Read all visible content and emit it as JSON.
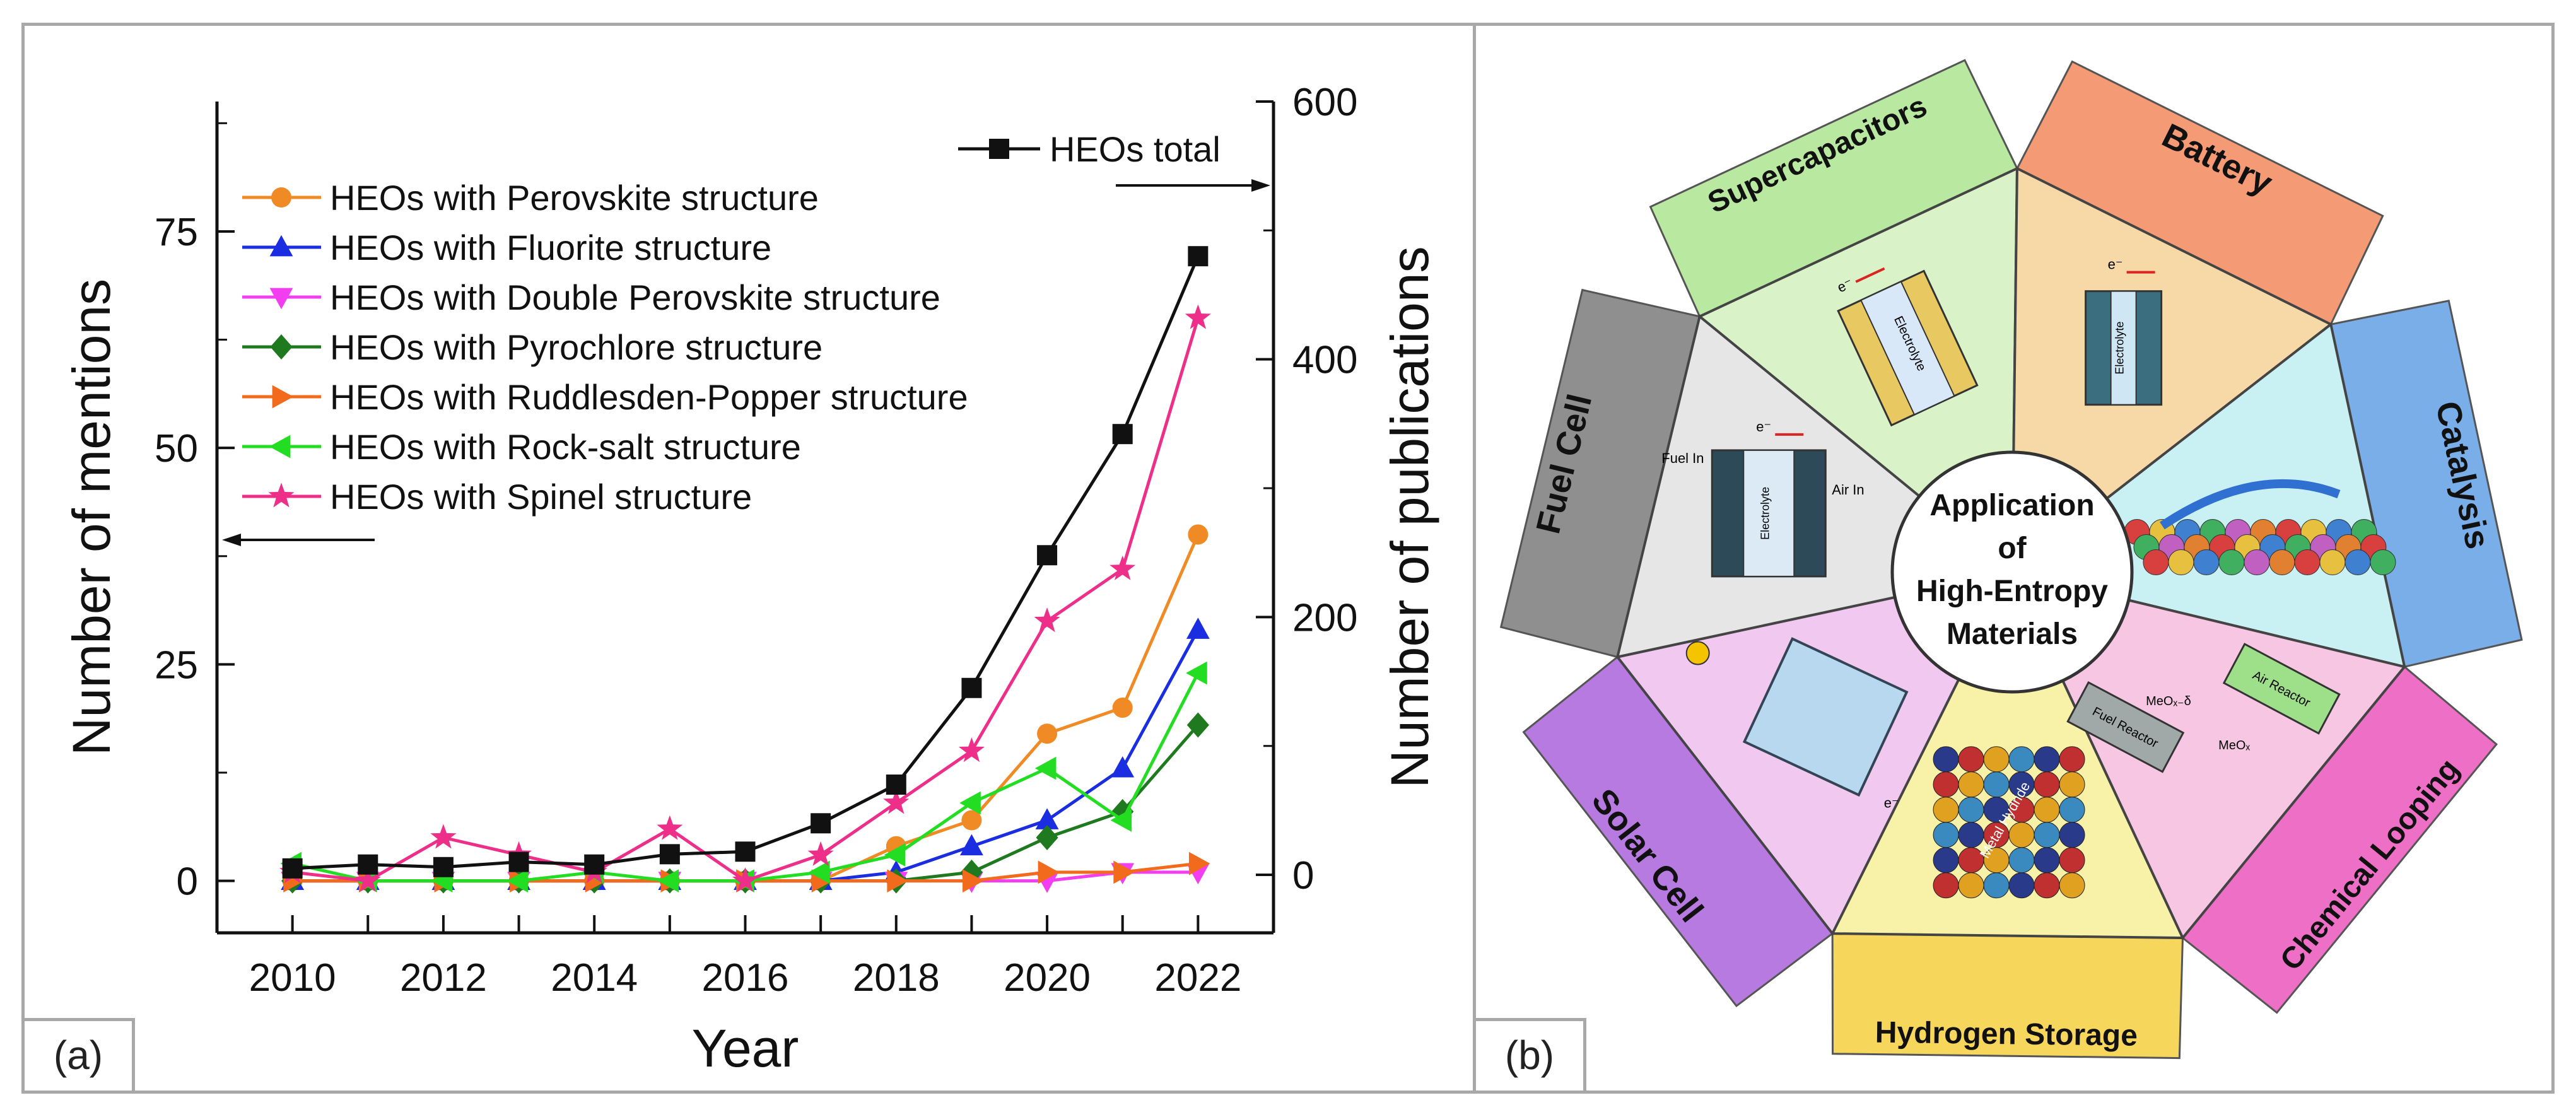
{
  "panel_a": {
    "tag": "(a)"
  },
  "panel_b": {
    "tag": "(b)",
    "center_label": [
      "Application",
      "of",
      "High-Entropy",
      "Materials"
    ],
    "segments": [
      {
        "label": "Supercapacitors",
        "color": "#d9f2c7",
        "band": "#b9e8a0"
      },
      {
        "label": "Battery",
        "color": "#f7d9a8",
        "band": "#f49a74"
      },
      {
        "label": "Catalysis",
        "color": "#c9f0f3",
        "band": "#79aee8"
      },
      {
        "label": "Chemical Looping",
        "color": "#f6c6e3",
        "band": "#ee6fc6"
      },
      {
        "label": "Hydrogen Storage",
        "color": "#f7f2a8",
        "band": "#f6d75b"
      },
      {
        "label": "Solar Cell",
        "color": "#f1c8f0",
        "band": "#b77ae0"
      },
      {
        "label": "Fuel Cell",
        "color": "#e6e6e6",
        "band": "#8f8f8f"
      }
    ],
    "diagram_text": {
      "electrolyte": "Electrolyte",
      "fuel_in": "Fuel In",
      "air_in": "Air In",
      "electron": "e⁻",
      "air_reactor": "Air Reactor",
      "fuel_reactor": "Fuel Reactor",
      "meo_x": "MeOₓ",
      "meo_xd": "MeOₓ₋δ",
      "metal_hydride": "Metal Hydride"
    }
  },
  "chart_data": {
    "type": "line",
    "xlabel": "Year",
    "ylabel": "Number of mentions",
    "y2label": "Number of publications",
    "x": [
      2010,
      2011,
      2012,
      2013,
      2014,
      2015,
      2016,
      2017,
      2018,
      2019,
      2020,
      2021,
      2022
    ],
    "xticks": [
      "2010",
      "2012",
      "2014",
      "2016",
      "2018",
      "2020",
      "2022"
    ],
    "xlim": [
      2009,
      2023
    ],
    "ylim": [
      -6,
      90
    ],
    "yticks": [
      "0",
      "25",
      "50",
      "75"
    ],
    "y2lim": [
      -45,
      600
    ],
    "y2ticks": [
      "0",
      "200",
      "400",
      "600"
    ],
    "series": [
      {
        "name": "HEOs total",
        "axis": "right",
        "color": "#111111",
        "marker": "square",
        "values": [
          5,
          8,
          6,
          10,
          8,
          16,
          18,
          40,
          70,
          145,
          248,
          342,
          480
        ]
      },
      {
        "name": "HEOs with Perovskite structure",
        "color": "#f08a24",
        "marker": "circle",
        "values": [
          0,
          0,
          0,
          0,
          0,
          0,
          0,
          0,
          4,
          7,
          17,
          20,
          40
        ]
      },
      {
        "name": "HEOs with Fluorite structure",
        "color": "#1a2de0",
        "marker": "triangle-up",
        "values": [
          0,
          0,
          0,
          0,
          0,
          0,
          0,
          0,
          1,
          4,
          7,
          13,
          29
        ]
      },
      {
        "name": "HEOs with Double Perovskite structure",
        "color": "#f23ef0",
        "marker": "triangle-down",
        "values": [
          0,
          0,
          0,
          0,
          0,
          0,
          0,
          0,
          0,
          0,
          0,
          1,
          1
        ]
      },
      {
        "name": "HEOs with Pyrochlore structure",
        "color": "#1f7a1f",
        "marker": "diamond",
        "values": [
          0,
          0,
          0,
          0,
          0,
          0,
          0,
          0,
          0,
          1,
          5,
          8,
          18
        ]
      },
      {
        "name": "HEOs with Ruddlesden-Popper structure",
        "color": "#f26a1b",
        "marker": "triangle-right",
        "values": [
          0,
          0,
          0,
          0,
          0,
          0,
          0,
          0,
          0,
          0,
          1,
          1,
          2
        ]
      },
      {
        "name": "HEOs with Rock-salt structure",
        "color": "#22dd22",
        "marker": "triangle-left",
        "values": [
          2,
          0,
          0,
          0,
          1,
          0,
          0,
          1,
          3,
          9,
          13,
          7,
          24
        ]
      },
      {
        "name": "HEOs with Spinel structure",
        "color": "#ee2f8a",
        "marker": "star",
        "values": [
          1,
          0,
          5,
          3,
          1,
          6,
          0,
          3,
          9,
          15,
          30,
          36,
          65
        ]
      }
    ]
  }
}
